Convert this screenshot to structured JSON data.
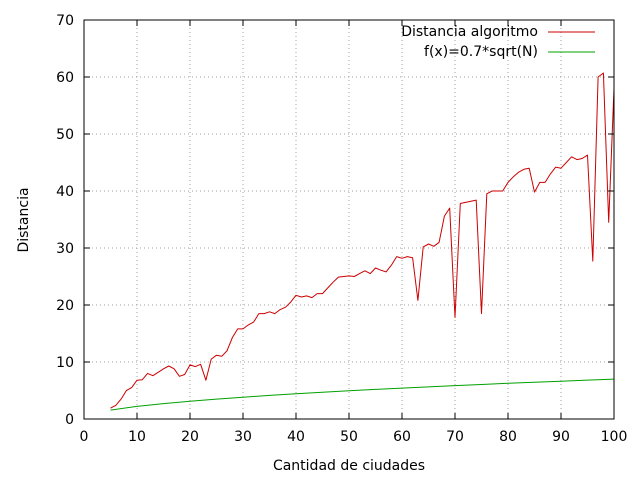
{
  "chart_data": {
    "type": "line",
    "title": "",
    "xlabel": "Cantidad de ciudades",
    "ylabel": "Distancia",
    "xlim": [
      0,
      100
    ],
    "ylim": [
      0,
      70
    ],
    "xticks": [
      0,
      10,
      20,
      30,
      40,
      50,
      60,
      70,
      80,
      90,
      100
    ],
    "yticks": [
      0,
      10,
      20,
      30,
      40,
      50,
      60,
      70
    ],
    "xtick_labels": [
      "0",
      "10",
      "20",
      "30",
      "40",
      "50",
      "60",
      "70",
      "80",
      "90",
      "100"
    ],
    "ytick_labels": [
      "0",
      "10",
      "20",
      "30",
      "40",
      "50",
      "60",
      "70"
    ],
    "grid": true,
    "legend_position": "top-right",
    "series": [
      {
        "name": "Distancia algoritmo",
        "color": "#cc0000",
        "x": [
          5,
          6,
          7,
          8,
          9,
          10,
          11,
          12,
          13,
          14,
          15,
          16,
          17,
          18,
          19,
          20,
          21,
          22,
          23,
          24,
          25,
          26,
          27,
          28,
          29,
          30,
          31,
          32,
          33,
          34,
          35,
          36,
          37,
          38,
          39,
          40,
          41,
          42,
          43,
          44,
          45,
          46,
          47,
          48,
          49,
          50,
          51,
          52,
          53,
          54,
          55,
          56,
          57,
          58,
          59,
          60,
          61,
          62,
          63,
          64,
          65,
          66,
          67,
          68,
          69,
          70,
          71,
          72,
          73,
          74,
          75,
          76,
          77,
          78,
          79,
          80,
          81,
          82,
          83,
          84,
          85,
          86,
          87,
          88,
          89,
          90,
          91,
          92,
          93,
          94,
          95,
          96,
          97,
          98,
          99,
          100
        ],
        "y": [
          1.9,
          2.4,
          3.5,
          5.0,
          5.5,
          6.8,
          6.9,
          8.0,
          7.6,
          8.2,
          8.8,
          9.3,
          8.8,
          7.5,
          7.8,
          9.5,
          9.2,
          9.6,
          6.8,
          10.5,
          11.2,
          11.0,
          12.0,
          14.3,
          15.8,
          15.8,
          16.5,
          17.0,
          18.5,
          18.5,
          18.8,
          18.5,
          19.2,
          19.6,
          20.5,
          21.7,
          21.4,
          21.6,
          21.3,
          22.0,
          22.0,
          23.0,
          24.0,
          24.9,
          25.0,
          25.1,
          25.0,
          25.5,
          26.0,
          25.5,
          26.5,
          26.1,
          25.8,
          27.0,
          28.5,
          28.2,
          28.5,
          28.3,
          20.8,
          30.2,
          30.7,
          30.3,
          31.0,
          35.6,
          37.0,
          17.8,
          37.8,
          38.0,
          38.2,
          38.4,
          18.5,
          39.5,
          40.0,
          40.0,
          40.0,
          41.5,
          42.5,
          43.3,
          43.8,
          44.0,
          39.8,
          41.5,
          41.5,
          43.0,
          44.2,
          44.0,
          45.0,
          46.0,
          45.5,
          45.7,
          46.3,
          27.7,
          60.0,
          60.7,
          34.5,
          58.0
        ]
      },
      {
        "name": "f(x)=0.7*sqrt(N)",
        "color": "#00a000",
        "function": "0.7*sqrt(N)",
        "x": [
          5,
          10,
          15,
          20,
          25,
          30,
          35,
          40,
          45,
          50,
          55,
          60,
          65,
          70,
          75,
          80,
          85,
          90,
          95,
          100
        ],
        "y": [
          1.57,
          2.21,
          2.71,
          3.13,
          3.5,
          3.83,
          4.14,
          4.43,
          4.7,
          4.95,
          5.19,
          5.42,
          5.64,
          5.86,
          6.06,
          6.26,
          6.45,
          6.64,
          6.82,
          7.0
        ]
      }
    ]
  }
}
